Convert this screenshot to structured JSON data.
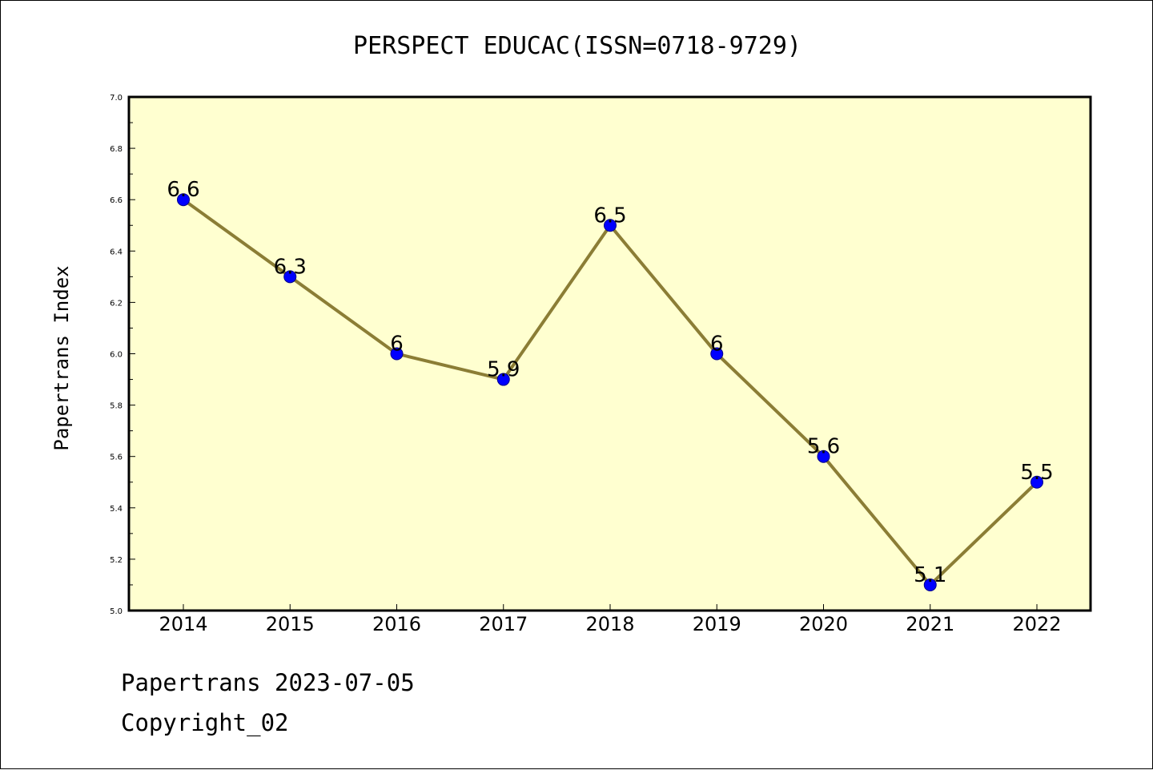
{
  "chart_data": {
    "type": "line",
    "title": "PERSPECT EDUCAC(ISSN=0718-9729)",
    "xlabel": "",
    "ylabel": "Papertrans Index",
    "categories": [
      "2014",
      "2015",
      "2016",
      "2017",
      "2018",
      "2019",
      "2020",
      "2021",
      "2022"
    ],
    "series": [
      {
        "values": [
          6.6,
          6.3,
          6.0,
          5.9,
          6.5,
          6.0,
          5.6,
          5.1,
          5.5
        ],
        "data_labels": [
          "6.6",
          "6.3",
          "6",
          "5.9",
          "6.5",
          "6",
          "5.6",
          "5.1",
          "5.5"
        ]
      }
    ],
    "ylim": [
      5.0,
      7.0
    ],
    "yticks": [
      "5.0",
      "5.2",
      "5.4",
      "5.6",
      "5.8",
      "6.0",
      "6.2",
      "6.4",
      "6.6",
      "6.8",
      "7.0"
    ],
    "grid": false,
    "colors": {
      "plot_background": "#ffffd0",
      "line": "#8b7d35",
      "marker": "#0000ff",
      "axes": "#000000"
    }
  },
  "footer": {
    "line1": "Papertrans 2023-07-05",
    "line2": "Copyright_02"
  }
}
